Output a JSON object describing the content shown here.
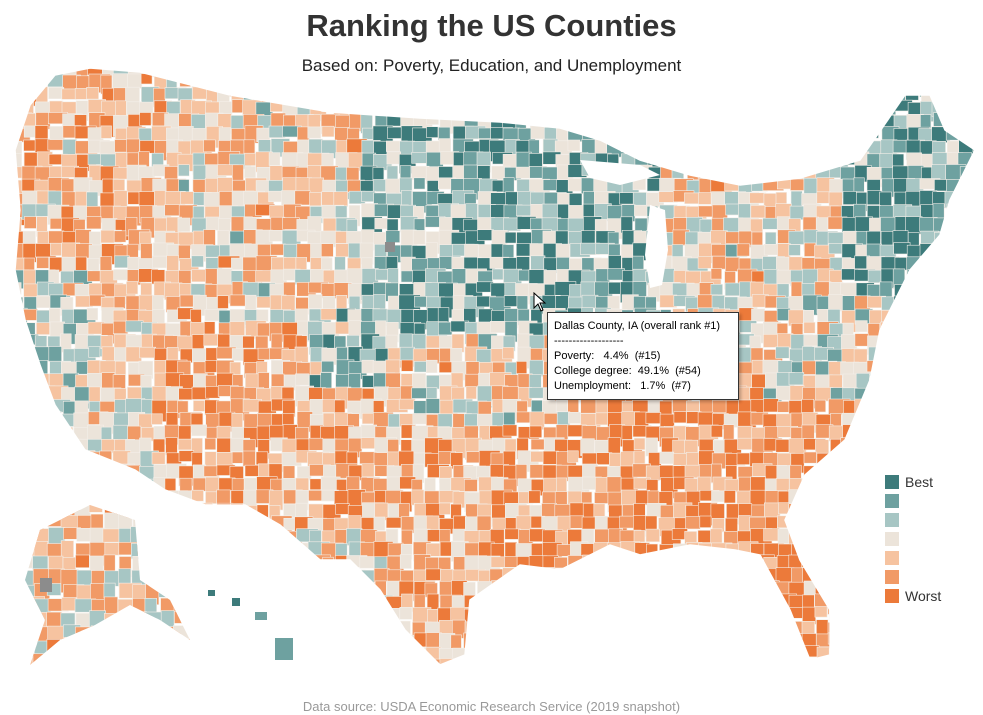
{
  "title": "Ranking the US Counties",
  "subtitle": "Based on: Poverty, Education, and Unemployment",
  "legend": {
    "items": [
      {
        "label": "Best",
        "color": "#3d7b7b"
      },
      {
        "label": "",
        "color": "#6ea1a0"
      },
      {
        "label": "",
        "color": "#a7c6c4"
      },
      {
        "label": "",
        "color": "#ece4da"
      },
      {
        "label": "",
        "color": "#f6c3a0"
      },
      {
        "label": "",
        "color": "#f19a66"
      },
      {
        "label": "Worst",
        "color": "#ec7a3a"
      }
    ],
    "missing_color": "#8c8c8c",
    "border_color": "#f4efe9"
  },
  "tooltip": {
    "heading": "Dallas County, IA (overall rank #1)",
    "separator": "-------------------",
    "line1": "Poverty:   4.4%  (#15)",
    "line2": "College degree:  49.1%  (#54)",
    "line3": "Unemployment:   1.7%  (#7)"
  },
  "footer": "Data source: USDA Economic Research Service (2019 snapshot)"
}
